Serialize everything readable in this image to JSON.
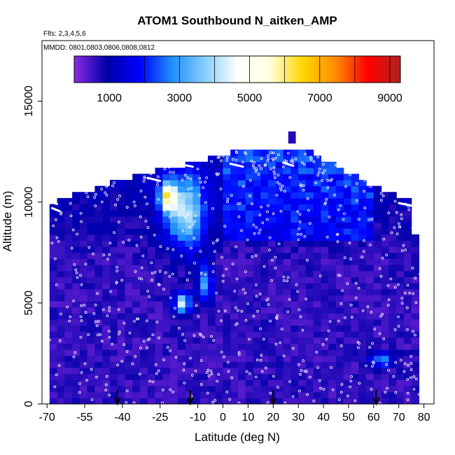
{
  "chart_data": {
    "type": "heatmap",
    "title": "ATOM1 Southbound N_aitken_AMP",
    "notes": [
      "Flts: 2,3,4,5,6",
      "MMDD: 0801,0803,0806,0808,0812"
    ],
    "xlabel": "Latitude (deg N)",
    "ylabel": "Altitude (m)",
    "xlim": [
      -72,
      84
    ],
    "ylim": [
      0,
      18000
    ],
    "x_ticks": [
      -70,
      -55,
      -40,
      -25,
      -10,
      0,
      10,
      20,
      30,
      40,
      50,
      60,
      70,
      80
    ],
    "x_tick_labels": [
      "-70",
      "-55",
      "-40",
      "-25",
      "-10",
      "0",
      "10",
      "20",
      "30",
      "40",
      "50",
      "60",
      "70",
      "80"
    ],
    "y_ticks": [
      0,
      5000,
      10000,
      15000
    ],
    "y_tick_labels": [
      "0",
      "5000",
      "10000",
      "15000"
    ],
    "colorbar": {
      "range": [
        0,
        9300
      ],
      "ticks": [
        1000,
        3000,
        5000,
        7000,
        9000
      ],
      "tick_labels": [
        "1000",
        "3000",
        "5000",
        "7000",
        "9000"
      ],
      "colors": [
        "#8a2be2",
        "#0000aa",
        "#0000ff",
        "#1e90ff",
        "#87cefa",
        "#ffffff",
        "#ffffe0",
        "#ffd700",
        "#ff8c00",
        "#ff0000",
        "#b22222"
      ]
    },
    "flight_latitudes_arrows": [
      -42,
      -13,
      20,
      61
    ],
    "approx_profile": [
      {
        "alt": 12500,
        "lat_min": 3,
        "lat_max": 37
      },
      {
        "alt": 11000,
        "lat_min": -45,
        "lat_max": 58
      },
      {
        "alt": 10000,
        "lat_min": -70,
        "lat_max": 77
      },
      {
        "alt": 5000,
        "lat_min": -70,
        "lat_max": 80
      },
      {
        "alt": 0,
        "lat_min": -70,
        "lat_max": 80
      }
    ]
  }
}
